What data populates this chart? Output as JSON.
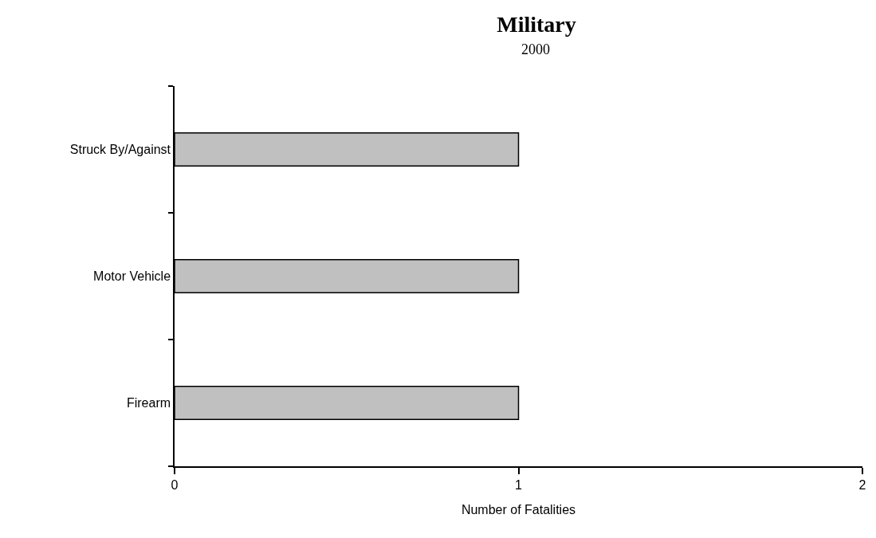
{
  "chart_data": {
    "type": "bar",
    "orientation": "horizontal",
    "title": "Military",
    "subtitle": "2000",
    "xlabel": "Number of Fatalities",
    "categories": [
      "Struck By/Against",
      "Motor Vehicle",
      "Firearm"
    ],
    "values": [
      1,
      1,
      1
    ],
    "color": "#c0c0c0",
    "xlim": [
      0,
      2
    ],
    "xticks": [
      0,
      1,
      2
    ]
  }
}
